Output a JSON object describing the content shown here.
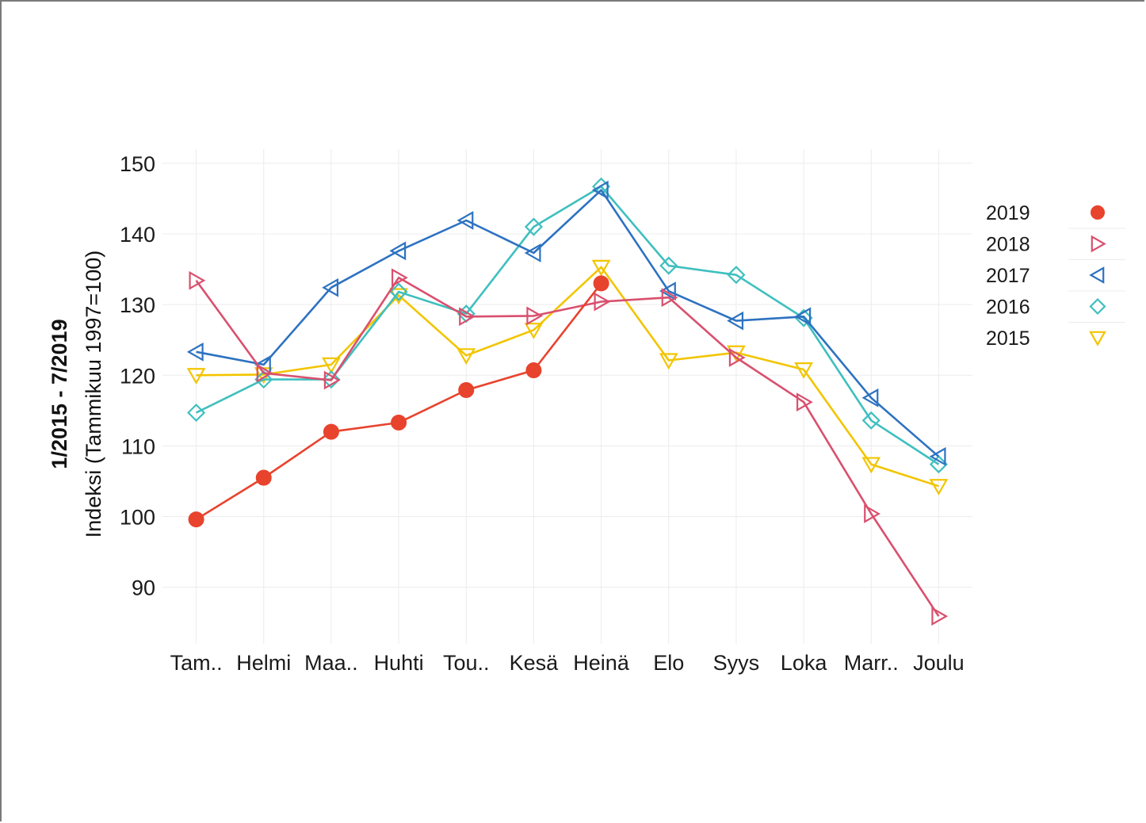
{
  "chart_data": {
    "type": "line",
    "ylabel_line1": "1/2015 - 7/2019",
    "ylabel_line2": "Indeksi (Tammikuu 1997=100)",
    "categories": [
      "Tam..",
      "Helmi",
      "Maa..",
      "Huhti",
      "Tou..",
      "Kesä",
      "Heinä",
      "Elo",
      "Syys",
      "Loka",
      "Marr..",
      "Joulu"
    ],
    "ylim": [
      82,
      152
    ],
    "yticks": [
      90,
      100,
      110,
      120,
      130,
      140,
      150
    ],
    "grid": true,
    "legend_position": "right",
    "series": [
      {
        "name": "2015",
        "color": "#f2c500",
        "marker": "triangle-down",
        "values": [
          120.0,
          120.1,
          121.5,
          131.3,
          122.8,
          126.4,
          135.3,
          122.1,
          123.2,
          120.8,
          107.4,
          104.3
        ]
      },
      {
        "name": "2016",
        "color": "#3fbfbf",
        "marker": "diamond",
        "values": [
          114.7,
          119.4,
          119.4,
          131.8,
          128.7,
          141.0,
          146.7,
          135.5,
          134.2,
          128.1,
          113.6,
          107.4
        ]
      },
      {
        "name": "2017",
        "color": "#2d72c1",
        "marker": "triangle-left",
        "values": [
          123.3,
          121.5,
          132.4,
          137.6,
          141.9,
          137.3,
          146.2,
          131.9,
          127.7,
          128.3,
          116.8,
          108.5
        ]
      },
      {
        "name": "2018",
        "color": "#d9506e",
        "marker": "triangle-right",
        "values": [
          133.4,
          120.3,
          119.3,
          133.8,
          128.3,
          128.4,
          130.4,
          131.0,
          122.5,
          116.2,
          100.4,
          85.9
        ]
      },
      {
        "name": "2019",
        "color": "#e8432d",
        "marker": "circle",
        "values": [
          99.6,
          105.5,
          112.0,
          113.3,
          117.9,
          120.7,
          133.0,
          null,
          null,
          null,
          null,
          null
        ]
      }
    ],
    "legend_order": [
      "2019",
      "2018",
      "2017",
      "2016",
      "2015"
    ]
  }
}
